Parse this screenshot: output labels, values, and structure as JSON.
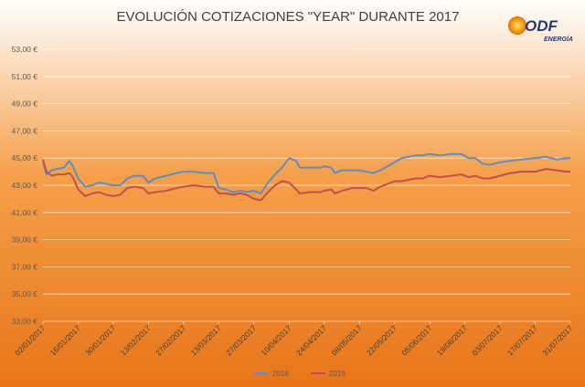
{
  "logo": {
    "name": "ODF",
    "subtitle": "ENERGÍA"
  },
  "chart_data": {
    "type": "line",
    "title": "EVOLUCIÓN COTIZACIONES \"YEAR\" DURANTE 2017",
    "xlabel": "",
    "ylabel": "",
    "ylim": [
      33,
      53
    ],
    "yticks": [
      33,
      35,
      37,
      39,
      41,
      43,
      45,
      47,
      49,
      51,
      53
    ],
    "ytick_labels": [
      "33,00 €",
      "35,00 €",
      "37,00 €",
      "39,00 €",
      "41,00 €",
      "43,00 €",
      "45,00 €",
      "47,00 €",
      "49,00 €",
      "51,00 €",
      "53,00 €"
    ],
    "x_categories": [
      "02/01/2017",
      "16/01/2017",
      "30/01/2017",
      "13/02/2017",
      "27/02/2017",
      "13/03/2017",
      "27/03/2017",
      "10/04/2017",
      "24/04/2017",
      "08/05/2017",
      "22/05/2017",
      "05/06/2017",
      "19/06/2017",
      "03/07/2017",
      "17/07/2017",
      "31/07/2017"
    ],
    "grid": true,
    "legend": "bottom",
    "background": [
      "#ffffff",
      "#f5a04a",
      "#e8751a"
    ],
    "series": [
      {
        "name": "2018",
        "color": "#5b8ec6",
        "values": [
          [
            0,
            44.7
          ],
          [
            0.1,
            43.8
          ],
          [
            0.25,
            44.1
          ],
          [
            0.4,
            44.2
          ],
          [
            0.6,
            44.3
          ],
          [
            0.75,
            44.8
          ],
          [
            0.85,
            44.4
          ],
          [
            1,
            43.5
          ],
          [
            1.2,
            42.9
          ],
          [
            1.4,
            43.0
          ],
          [
            1.6,
            43.2
          ],
          [
            1.8,
            43.1
          ],
          [
            2,
            43.0
          ],
          [
            2.2,
            43.0
          ],
          [
            2.4,
            43.5
          ],
          [
            2.6,
            43.7
          ],
          [
            2.85,
            43.7
          ],
          [
            3,
            43.2
          ],
          [
            3.2,
            43.5
          ],
          [
            3.5,
            43.7
          ],
          [
            3.8,
            43.9
          ],
          [
            4,
            44.0
          ],
          [
            4.3,
            44.0
          ],
          [
            4.6,
            43.9
          ],
          [
            4.85,
            43.9
          ],
          [
            5,
            42.8
          ],
          [
            5.2,
            42.7
          ],
          [
            5.4,
            42.5
          ],
          [
            5.6,
            42.6
          ],
          [
            5.8,
            42.5
          ],
          [
            6,
            42.6
          ],
          [
            6.2,
            42.4
          ],
          [
            6.4,
            43.2
          ],
          [
            6.6,
            43.8
          ],
          [
            6.8,
            44.3
          ],
          [
            7,
            45.0
          ],
          [
            7.2,
            44.8
          ],
          [
            7.3,
            44.3
          ],
          [
            7.6,
            44.3
          ],
          [
            7.9,
            44.3
          ],
          [
            8,
            44.4
          ],
          [
            8.2,
            44.3
          ],
          [
            8.3,
            43.9
          ],
          [
            8.5,
            44.1
          ],
          [
            8.8,
            44.1
          ],
          [
            9,
            44.1
          ],
          [
            9.2,
            44.0
          ],
          [
            9.4,
            43.9
          ],
          [
            9.6,
            44.1
          ],
          [
            9.8,
            44.4
          ],
          [
            10,
            44.7
          ],
          [
            10.2,
            45.0
          ],
          [
            10.4,
            45.1
          ],
          [
            10.6,
            45.2
          ],
          [
            10.8,
            45.2
          ],
          [
            11,
            45.3
          ],
          [
            11.3,
            45.2
          ],
          [
            11.6,
            45.3
          ],
          [
            11.9,
            45.3
          ],
          [
            12.1,
            45.0
          ],
          [
            12.3,
            45.0
          ],
          [
            12.5,
            44.6
          ],
          [
            12.7,
            44.5
          ],
          [
            13,
            44.7
          ],
          [
            13.3,
            44.8
          ],
          [
            13.6,
            44.9
          ],
          [
            14,
            45.0
          ],
          [
            14.3,
            45.1
          ],
          [
            14.6,
            44.9
          ],
          [
            14.9,
            45.0
          ],
          [
            15,
            45.0
          ]
        ]
      },
      {
        "name": "2019",
        "color": "#c0504d",
        "values": [
          [
            0,
            44.9
          ],
          [
            0.1,
            44.0
          ],
          [
            0.25,
            43.7
          ],
          [
            0.4,
            43.8
          ],
          [
            0.6,
            43.8
          ],
          [
            0.75,
            43.9
          ],
          [
            0.85,
            43.6
          ],
          [
            1,
            42.7
          ],
          [
            1.2,
            42.2
          ],
          [
            1.4,
            42.4
          ],
          [
            1.6,
            42.5
          ],
          [
            1.8,
            42.3
          ],
          [
            2,
            42.2
          ],
          [
            2.2,
            42.3
          ],
          [
            2.4,
            42.8
          ],
          [
            2.6,
            42.9
          ],
          [
            2.85,
            42.8
          ],
          [
            3,
            42.4
          ],
          [
            3.2,
            42.5
          ],
          [
            3.5,
            42.6
          ],
          [
            3.8,
            42.8
          ],
          [
            4,
            42.9
          ],
          [
            4.3,
            43.0
          ],
          [
            4.6,
            42.9
          ],
          [
            4.85,
            42.9
          ],
          [
            5,
            42.4
          ],
          [
            5.2,
            42.4
          ],
          [
            5.4,
            42.3
          ],
          [
            5.6,
            42.4
          ],
          [
            5.8,
            42.3
          ],
          [
            6,
            42.0
          ],
          [
            6.2,
            41.9
          ],
          [
            6.4,
            42.5
          ],
          [
            6.6,
            43.0
          ],
          [
            6.8,
            43.3
          ],
          [
            7,
            43.2
          ],
          [
            7.2,
            42.7
          ],
          [
            7.3,
            42.4
          ],
          [
            7.6,
            42.5
          ],
          [
            7.9,
            42.5
          ],
          [
            8,
            42.6
          ],
          [
            8.2,
            42.7
          ],
          [
            8.3,
            42.4
          ],
          [
            8.5,
            42.6
          ],
          [
            8.8,
            42.8
          ],
          [
            9,
            42.8
          ],
          [
            9.2,
            42.8
          ],
          [
            9.4,
            42.6
          ],
          [
            9.6,
            42.9
          ],
          [
            9.8,
            43.1
          ],
          [
            10,
            43.3
          ],
          [
            10.2,
            43.3
          ],
          [
            10.4,
            43.4
          ],
          [
            10.6,
            43.5
          ],
          [
            10.8,
            43.5
          ],
          [
            11,
            43.7
          ],
          [
            11.3,
            43.6
          ],
          [
            11.6,
            43.7
          ],
          [
            11.9,
            43.8
          ],
          [
            12.1,
            43.6
          ],
          [
            12.3,
            43.7
          ],
          [
            12.5,
            43.5
          ],
          [
            12.7,
            43.5
          ],
          [
            13,
            43.7
          ],
          [
            13.3,
            43.9
          ],
          [
            13.6,
            44.0
          ],
          [
            14,
            44.0
          ],
          [
            14.3,
            44.2
          ],
          [
            14.6,
            44.1
          ],
          [
            14.9,
            44.0
          ],
          [
            15,
            44.0
          ]
        ]
      }
    ]
  }
}
